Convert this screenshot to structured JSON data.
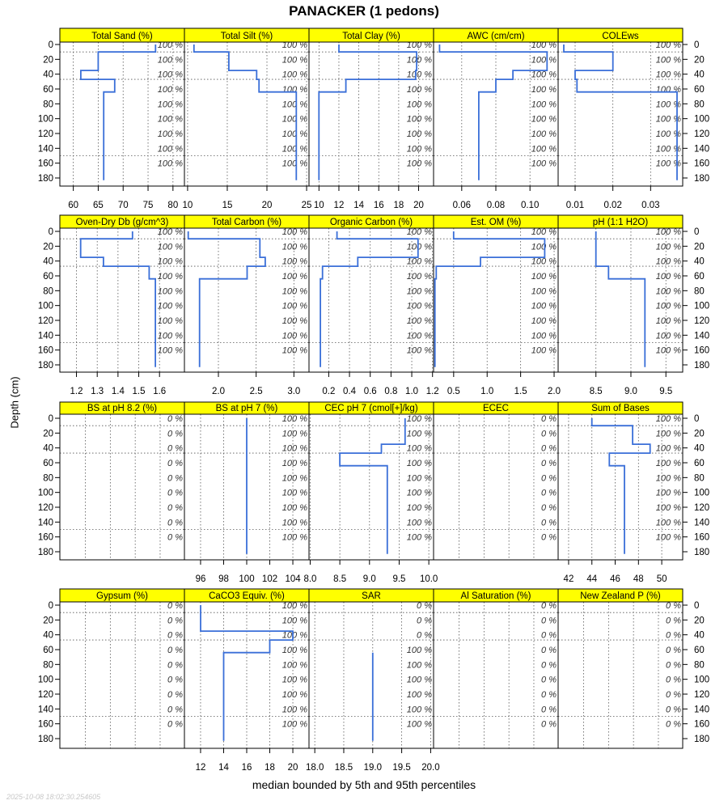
{
  "title": "PANACKER (1 pedons)",
  "ylabel": "Depth (cm)",
  "xlabel": "median bounded by 5th and 95th percentiles",
  "timestamp": "2025-10-08 18:02:30.254605",
  "colors": {
    "line": "#3a6fd8",
    "strip": "#ffff00",
    "grid": "#555555"
  },
  "depth_ticks": [
    0,
    20,
    40,
    60,
    80,
    100,
    120,
    140,
    160,
    180
  ],
  "chart_data": [
    {
      "type": "line",
      "name": "Total Sand (%)",
      "xlim": [
        57.3,
        82.3
      ],
      "ticks": [
        60,
        65,
        70,
        75,
        80
      ],
      "pct": [
        "100 %",
        "100 %",
        "100 %",
        "100 %",
        "100 %",
        "100 %",
        "100 %",
        "100 %",
        "100 %"
      ],
      "profile": [
        [
          76.5,
          0
        ],
        [
          76.5,
          10
        ],
        [
          65,
          10
        ],
        [
          65,
          35
        ],
        [
          61.5,
          35
        ],
        [
          61.5,
          47
        ],
        [
          68.3,
          47
        ],
        [
          68.3,
          64
        ],
        [
          66.1,
          64
        ],
        [
          66.1,
          183
        ]
      ]
    },
    {
      "type": "line",
      "name": "Total Silt (%)",
      "xlim": [
        9.6,
        25.3
      ],
      "ticks": [
        10,
        15,
        20,
        25
      ],
      "pct": [
        "100 %",
        "100 %",
        "100 %",
        "100 %",
        "100 %",
        "100 %",
        "100 %",
        "100 %",
        "100 %"
      ],
      "profile": [
        [
          10.8,
          0
        ],
        [
          10.8,
          10
        ],
        [
          15.2,
          10
        ],
        [
          15.2,
          35
        ],
        [
          18.7,
          35
        ],
        [
          18.7,
          47
        ],
        [
          19,
          47
        ],
        [
          19,
          64
        ],
        [
          23.7,
          64
        ],
        [
          23.7,
          183
        ]
      ]
    },
    {
      "type": "line",
      "name": "Total Clay (%)",
      "xlim": [
        9.0,
        21.5
      ],
      "ticks": [
        10,
        12,
        14,
        16,
        18,
        20
      ],
      "pct": [
        "100 %",
        "100 %",
        "100 %",
        "100 %",
        "100 %",
        "100 %",
        "100 %",
        "100 %",
        "100 %"
      ],
      "profile": [
        [
          12,
          0
        ],
        [
          12,
          10
        ],
        [
          19.8,
          10
        ],
        [
          19.8,
          35
        ],
        [
          19.7,
          35
        ],
        [
          19.7,
          47
        ],
        [
          12.7,
          47
        ],
        [
          12.7,
          64
        ],
        [
          10,
          64
        ],
        [
          10,
          183
        ]
      ]
    },
    {
      "type": "line",
      "name": "AWC (cm/cm)",
      "xlim": [
        0.0435,
        0.1165
      ],
      "ticks": [
        0.06,
        0.08,
        0.1
      ],
      "tick_labels": [
        "0.06",
        "0.08",
        "0.10"
      ],
      "pct": [
        "100 %",
        "100 %",
        "100 %",
        "100 %",
        "100 %",
        "100 %",
        "100 %",
        "100 %",
        "100 %"
      ],
      "profile": [
        [
          0.047,
          0
        ],
        [
          0.047,
          10
        ],
        [
          0.11,
          10
        ],
        [
          0.11,
          35
        ],
        [
          0.09,
          35
        ],
        [
          0.09,
          47
        ],
        [
          0.08,
          47
        ],
        [
          0.08,
          64
        ],
        [
          0.07,
          64
        ],
        [
          0.07,
          183
        ]
      ]
    },
    {
      "type": "line",
      "name": "COLEws",
      "xlim": [
        0.0055,
        0.0385
      ],
      "ticks": [
        0.01,
        0.02,
        0.03
      ],
      "pct": [
        "100 %",
        "100 %",
        "100 %",
        "100 %",
        "100 %",
        "100 %",
        "100 %",
        "100 %",
        "100 %"
      ],
      "profile": [
        [
          0.007,
          0
        ],
        [
          0.007,
          10
        ],
        [
          0.02,
          10
        ],
        [
          0.02,
          35
        ],
        [
          0.01,
          35
        ],
        [
          0.01,
          47
        ],
        [
          0.0105,
          47
        ],
        [
          0.0105,
          64
        ],
        [
          0.037,
          64
        ],
        [
          0.037,
          183
        ]
      ]
    },
    {
      "type": "line",
      "name": "Oven-Dry Db (g/cm^3)",
      "xlim": [
        1.12,
        1.72
      ],
      "ticks": [
        1.2,
        1.3,
        1.4,
        1.5,
        1.6
      ],
      "pct": [
        "100 %",
        "100 %",
        "100 %",
        "100 %",
        "100 %",
        "100 %",
        "100 %",
        "100 %",
        "100 %"
      ],
      "profile": [
        [
          1.47,
          0
        ],
        [
          1.47,
          10
        ],
        [
          1.22,
          10
        ],
        [
          1.22,
          35
        ],
        [
          1.33,
          35
        ],
        [
          1.33,
          47
        ],
        [
          1.55,
          47
        ],
        [
          1.55,
          64
        ],
        [
          1.58,
          64
        ],
        [
          1.58,
          183
        ]
      ]
    },
    {
      "type": "line",
      "name": "Total Carbon (%)",
      "xlim": [
        1.55,
        3.2
      ],
      "ticks": [
        2.0,
        2.5,
        3.0
      ],
      "tick_labels": [
        "2.0",
        "2.5",
        "3.0"
      ],
      "pct": [
        "100 %",
        "100 %",
        "100 %",
        "100 %",
        "100 %",
        "100 %",
        "100 %",
        "100 %",
        "100 %"
      ],
      "profile": [
        [
          1.6,
          0
        ],
        [
          1.6,
          10
        ],
        [
          2.55,
          10
        ],
        [
          2.55,
          35
        ],
        [
          2.62,
          35
        ],
        [
          2.62,
          47
        ],
        [
          2.38,
          47
        ],
        [
          2.38,
          64
        ],
        [
          1.75,
          64
        ],
        [
          1.75,
          183
        ]
      ]
    },
    {
      "type": "line",
      "name": "Organic Carbon (%)",
      "xlim": [
        0.01,
        1.21
      ],
      "ticks": [
        0.2,
        0.4,
        0.6,
        0.8,
        1.0,
        1.2
      ],
      "tick_labels": [
        "0.2",
        "0.4",
        "0.6",
        "0.8",
        "1.0",
        "1.2"
      ],
      "pct": [
        "100 %",
        "100 %",
        "100 %",
        "100 %",
        "100 %",
        "100 %",
        "100 %",
        "100 %",
        "100 %"
      ],
      "profile": [
        [
          0.28,
          0
        ],
        [
          0.28,
          10
        ],
        [
          1.06,
          10
        ],
        [
          1.06,
          35
        ],
        [
          0.48,
          35
        ],
        [
          0.48,
          47
        ],
        [
          0.14,
          47
        ],
        [
          0.14,
          64
        ],
        [
          0.12,
          64
        ],
        [
          0.12,
          183
        ]
      ]
    },
    {
      "type": "line",
      "name": "Est. OM (%)",
      "xlim": [
        0.2,
        2.06
      ],
      "ticks": [
        0.5,
        1.0,
        1.5,
        2.0
      ],
      "tick_labels": [
        "0.5",
        "1.0",
        "1.5",
        "2.0"
      ],
      "pct": [
        "100 %",
        "100 %",
        "100 %",
        "100 %",
        "100 %",
        "100 %",
        "100 %",
        "100 %",
        "100 %"
      ],
      "profile": [
        [
          0.5,
          0
        ],
        [
          0.5,
          10
        ],
        [
          1.86,
          10
        ],
        [
          1.86,
          35
        ],
        [
          0.9,
          35
        ],
        [
          0.9,
          47
        ],
        [
          0.24,
          47
        ],
        [
          0.24,
          64
        ],
        [
          0.22,
          64
        ],
        [
          0.22,
          183
        ]
      ]
    },
    {
      "type": "line",
      "name": "pH (1:1 H2O)",
      "xlim": [
        7.96,
        9.74
      ],
      "ticks": [
        8.5,
        9.0,
        9.5
      ],
      "tick_labels": [
        "8.5",
        "9.0",
        "9.5"
      ],
      "pct": [
        "100 %",
        "100 %",
        "100 %",
        "100 %",
        "100 %",
        "100 %",
        "100 %",
        "100 %",
        "100 %"
      ],
      "profile": [
        [
          8.5,
          0
        ],
        [
          8.5,
          10
        ],
        [
          8.5,
          35
        ],
        [
          8.5,
          47
        ],
        [
          8.68,
          47
        ],
        [
          8.68,
          64
        ],
        [
          9.2,
          64
        ],
        [
          9.2,
          183
        ]
      ]
    },
    {
      "type": "line",
      "name": "BS at pH 8.2 (%)",
      "xlim": [
        0,
        1
      ],
      "ticks": [],
      "pct": [
        "0 %",
        "0 %",
        "0 %",
        "0 %",
        "0 %",
        "0 %",
        "0 %",
        "0 %",
        "0 %"
      ],
      "profile": []
    },
    {
      "type": "line",
      "name": "BS at pH 7 (%)",
      "xlim": [
        94.6,
        105.4
      ],
      "ticks": [
        96,
        98,
        100,
        102,
        104
      ],
      "pct": [
        "100 %",
        "100 %",
        "100 %",
        "100 %",
        "100 %",
        "100 %",
        "100 %",
        "100 %",
        "100 %"
      ],
      "profile": [
        [
          100,
          0
        ],
        [
          100,
          183
        ]
      ]
    },
    {
      "type": "line",
      "name": "CEC pH 7 (cmol[+]/kg)",
      "xlim": [
        7.98,
        10.08
      ],
      "ticks": [
        8.0,
        8.5,
        9.0,
        9.5,
        10.0
      ],
      "tick_labels": [
        "8.0",
        "8.5",
        "9.0",
        "9.5",
        "10.0"
      ],
      "pct": [
        "100 %",
        "100 %",
        "100 %",
        "100 %",
        "100 %",
        "100 %",
        "100 %",
        "100 %",
        "100 %"
      ],
      "profile": [
        [
          9.6,
          0
        ],
        [
          9.6,
          10
        ],
        [
          9.6,
          35
        ],
        [
          9.2,
          35
        ],
        [
          9.2,
          47
        ],
        [
          8.5,
          47
        ],
        [
          8.5,
          64
        ],
        [
          9.3,
          64
        ],
        [
          9.3,
          183
        ]
      ]
    },
    {
      "type": "line",
      "name": "ECEC",
      "xlim": [
        0,
        1
      ],
      "ticks": [],
      "pct": [
        "0 %",
        "0 %",
        "0 %",
        "0 %",
        "0 %",
        "0 %",
        "0 %",
        "0 %",
        "0 %"
      ],
      "profile": []
    },
    {
      "type": "line",
      "name": "Sum of Bases",
      "xlim": [
        41.1,
        51.8
      ],
      "ticks": [
        42,
        44,
        46,
        48,
        50
      ],
      "pct": [
        "100 %",
        "100 %",
        "100 %",
        "100 %",
        "100 %",
        "100 %",
        "100 %",
        "100 %",
        "100 %"
      ],
      "profile": [
        [
          44,
          0
        ],
        [
          44,
          10
        ],
        [
          47.5,
          10
        ],
        [
          47.5,
          35
        ],
        [
          49,
          35
        ],
        [
          49,
          47
        ],
        [
          45.5,
          47
        ],
        [
          45.5,
          64
        ],
        [
          46.8,
          64
        ],
        [
          46.8,
          183
        ]
      ]
    },
    {
      "type": "line",
      "name": "Gypsum (%)",
      "xlim": [
        0,
        1
      ],
      "ticks": [],
      "pct": [
        "0 %",
        "0 %",
        "0 %",
        "0 %",
        "0 %",
        "0 %",
        "0 %",
        "0 %",
        "0 %"
      ],
      "profile": []
    },
    {
      "type": "line",
      "name": "CaCO3 Equiv. (%)",
      "xlim": [
        10.6,
        21.4
      ],
      "ticks": [
        12,
        14,
        16,
        18,
        20
      ],
      "pct": [
        "100 %",
        "100 %",
        "100 %",
        "100 %",
        "100 %",
        "100 %",
        "100 %",
        "100 %",
        "100 %"
      ],
      "profile": [
        [
          12,
          0
        ],
        [
          12,
          10
        ],
        [
          12,
          35
        ],
        [
          20,
          35
        ],
        [
          20,
          47
        ],
        [
          18,
          47
        ],
        [
          18,
          64
        ],
        [
          14,
          64
        ],
        [
          14,
          183
        ]
      ]
    },
    {
      "type": "line",
      "name": "SAR",
      "xlim": [
        17.9,
        20.05
      ],
      "ticks": [
        18.0,
        18.5,
        19.0,
        19.5,
        20.0
      ],
      "tick_labels": [
        "18.0",
        "18.5",
        "19.0",
        "19.5",
        "20.0"
      ],
      "pct": [
        "0 %",
        "0 %",
        "0 %",
        "100 %",
        "100 %",
        "100 %",
        "100 %",
        "100 %",
        "100 %"
      ],
      "profile": [
        [
          19,
          64
        ],
        [
          19,
          183
        ]
      ]
    },
    {
      "type": "line",
      "name": "Al Saturation (%)",
      "xlim": [
        0,
        1
      ],
      "ticks": [],
      "pct": [
        "0 %",
        "0 %",
        "0 %",
        "0 %",
        "0 %",
        "0 %",
        "0 %",
        "0 %",
        "0 %"
      ],
      "profile": []
    },
    {
      "type": "line",
      "name": "New Zealand P (%)",
      "xlim": [
        0,
        1
      ],
      "ticks": [],
      "pct": [
        "0 %",
        "0 %",
        "0 %",
        "0 %",
        "0 %",
        "0 %",
        "0 %",
        "0 %",
        "0 %"
      ],
      "profile": []
    }
  ]
}
